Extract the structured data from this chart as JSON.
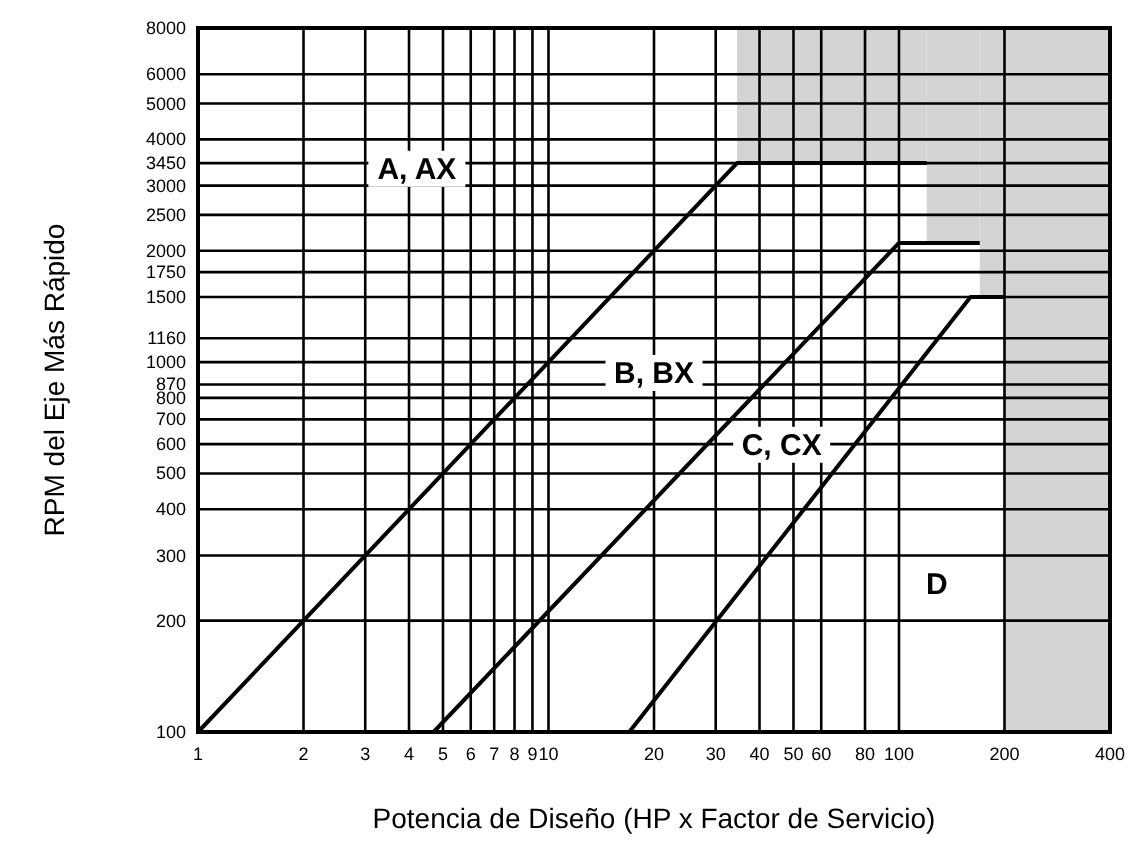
{
  "chart_data": {
    "type": "line",
    "xlabel": "Potencia de Diseño (HP x Factor de Servicio)",
    "ylabel": "RPM del Eje Más Rápido",
    "log": "xy",
    "grid": true,
    "marker": "none",
    "xlim": [
      1,
      400
    ],
    "xticks": [
      1,
      2,
      3,
      4,
      5,
      6,
      7,
      8,
      9,
      10,
      20,
      30,
      40,
      50,
      60,
      80,
      100,
      200,
      400
    ],
    "ylim": [
      100,
      8000
    ],
    "yticks": [
      100,
      200,
      300,
      400,
      500,
      600,
      700,
      800,
      870,
      1000,
      1160,
      1500,
      1750,
      2000,
      2500,
      3000,
      3450,
      4000,
      5000,
      6000,
      8000
    ],
    "bands": [
      {
        "axis": "x",
        "from": 200,
        "to": 400,
        "color": "#d4d4d4"
      }
    ],
    "series": [
      {
        "color": "#000000",
        "x": [
          1,
          34.5,
          120
        ],
        "values": [
          100,
          3450,
          3450
        ]
      },
      {
        "color": "#000000",
        "x": [
          4.7,
          100,
          170
        ],
        "values": [
          100,
          2100,
          2100
        ]
      },
      {
        "color": "#000000",
        "x": [
          17,
          160,
          200
        ],
        "values": [
          100,
          1500,
          1500
        ]
      }
    ],
    "annotations": [
      "A, AX",
      "B, BX",
      "C, CX",
      "D"
    ]
  }
}
